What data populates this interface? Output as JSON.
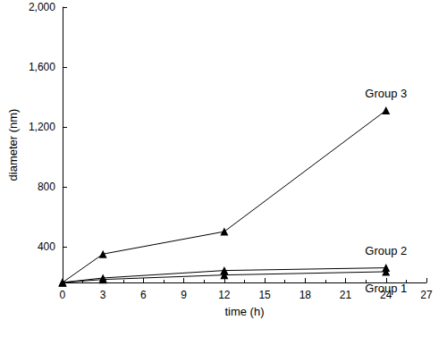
{
  "chart_data": {
    "type": "line",
    "x_label": "time (h)",
    "y_label": "diameter (nm)",
    "xlim": [
      0,
      27
    ],
    "xticks": [
      0,
      3,
      6,
      9,
      12,
      15,
      18,
      21,
      24,
      27
    ],
    "ylim": [
      160,
      2000
    ],
    "yticks": [
      400,
      800,
      1200,
      1600,
      2000
    ],
    "grid": false,
    "series": [
      {
        "name": "Group 3",
        "color": "#000000",
        "marker": "triangle",
        "x": [
          0,
          3,
          12,
          24
        ],
        "values": [
          160,
          350,
          500,
          1310
        ]
      },
      {
        "name": "Group 2",
        "color": "#000000",
        "marker": "triangle",
        "x": [
          0,
          3,
          12,
          24
        ],
        "values": [
          160,
          190,
          240,
          258
        ]
      },
      {
        "name": "Group 1",
        "color": "#000000",
        "marker": "triangle",
        "x": [
          0,
          3,
          12,
          24
        ],
        "values": [
          160,
          180,
          210,
          232
        ]
      }
    ]
  }
}
